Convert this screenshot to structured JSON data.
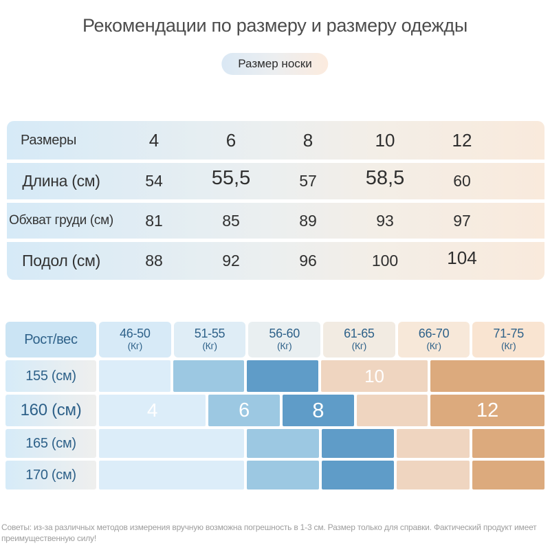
{
  "page": {
    "title": "Рекомендации по размеру и размеру одежды",
    "badge": "Размер носки",
    "footer": "Советы: из-за различных методов измерения вручную возможна погрешность в 1-3 см. Размер только для справки. Фактический продукт имеет преимущественную силу!"
  },
  "size_table": {
    "header": {
      "label": "Размеры",
      "cols": [
        "4",
        "6",
        "8",
        "10",
        "12"
      ]
    },
    "rows": [
      {
        "label": "Длина (см)",
        "cells": [
          {
            "t": "54"
          },
          {
            "t": "55,5",
            "em": true
          },
          {
            "t": "57"
          },
          {
            "t": "58,5",
            "em": true
          },
          {
            "t": "60"
          }
        ]
      },
      {
        "label": "Обхват груди (см)",
        "cells": [
          {
            "t": "81"
          },
          {
            "t": "85"
          },
          {
            "t": "89"
          },
          {
            "t": "93"
          },
          {
            "t": "97"
          }
        ]
      },
      {
        "label": "Подол (см)",
        "cells": [
          {
            "t": "88"
          },
          {
            "t": "92"
          },
          {
            "t": "96"
          },
          {
            "t": "100"
          },
          {
            "t": "104",
            "em2": true
          }
        ]
      }
    ]
  },
  "matrix_table": {
    "corner": "Рост/вес",
    "weight_cols": [
      {
        "range": "46-50",
        "unit": "(Кг)"
      },
      {
        "range": "51-55",
        "unit": "(Кг)"
      },
      {
        "range": "56-60",
        "unit": "(Кг)"
      },
      {
        "range": "61-65",
        "unit": "(Кг)"
      },
      {
        "range": "66-70",
        "unit": "(Кг)"
      },
      {
        "range": "71-75",
        "unit": "(Кг)"
      }
    ],
    "rows": [
      {
        "label": "155 (см)",
        "segments": [
          {
            "w": 1,
            "c": "b1"
          },
          {
            "w": 1,
            "c": "b2"
          },
          {
            "w": 1,
            "c": "b3"
          },
          {
            "w": 1.5,
            "c": "o1",
            "label": "10",
            "fs": 26
          },
          {
            "w": 1.6,
            "c": "o2"
          }
        ]
      },
      {
        "label": "160 (см)",
        "big": true,
        "segments": [
          {
            "w": 1.5,
            "c": "b1",
            "label": "4",
            "fs": 28
          },
          {
            "w": 1,
            "c": "b2",
            "label": "6",
            "fs": 29
          },
          {
            "w": 1,
            "c": "b3",
            "label": "8",
            "fs": 31
          },
          {
            "w": 1,
            "c": "o1"
          },
          {
            "w": 1.6,
            "c": "o2",
            "label": "12",
            "fs": 29
          }
        ]
      },
      {
        "label": "165 (см)",
        "segments": [
          {
            "w": 2,
            "c": "b1"
          },
          {
            "w": 1,
            "c": "b2"
          },
          {
            "w": 1,
            "c": "b3"
          },
          {
            "w": 1,
            "c": "o1"
          },
          {
            "w": 1,
            "c": "o2"
          }
        ]
      },
      {
        "label": "170 (см)",
        "segments": [
          {
            "w": 2,
            "c": "b1"
          },
          {
            "w": 1,
            "c": "b2"
          },
          {
            "w": 1,
            "c": "b3"
          },
          {
            "w": 1,
            "c": "o1"
          },
          {
            "w": 1,
            "c": "o2"
          }
        ]
      }
    ]
  },
  "colors": {
    "b1": "#dcedf9",
    "b2": "#9cc8e2",
    "b3": "#5f9cc8",
    "o1": "#efd5c0",
    "o2": "#dcaa7d",
    "matrix_header": [
      "#cbe4f4",
      "#d7eaf7",
      "#dfedf6",
      "#e9eff1",
      "#f2ebe2",
      "#f7e8d9",
      "#f9e4d1"
    ],
    "matrix_text": "#2e6189",
    "table_text": "#2f2f2f",
    "title_text": "#4c4c4c",
    "footer_text": "#9d9d9d"
  }
}
